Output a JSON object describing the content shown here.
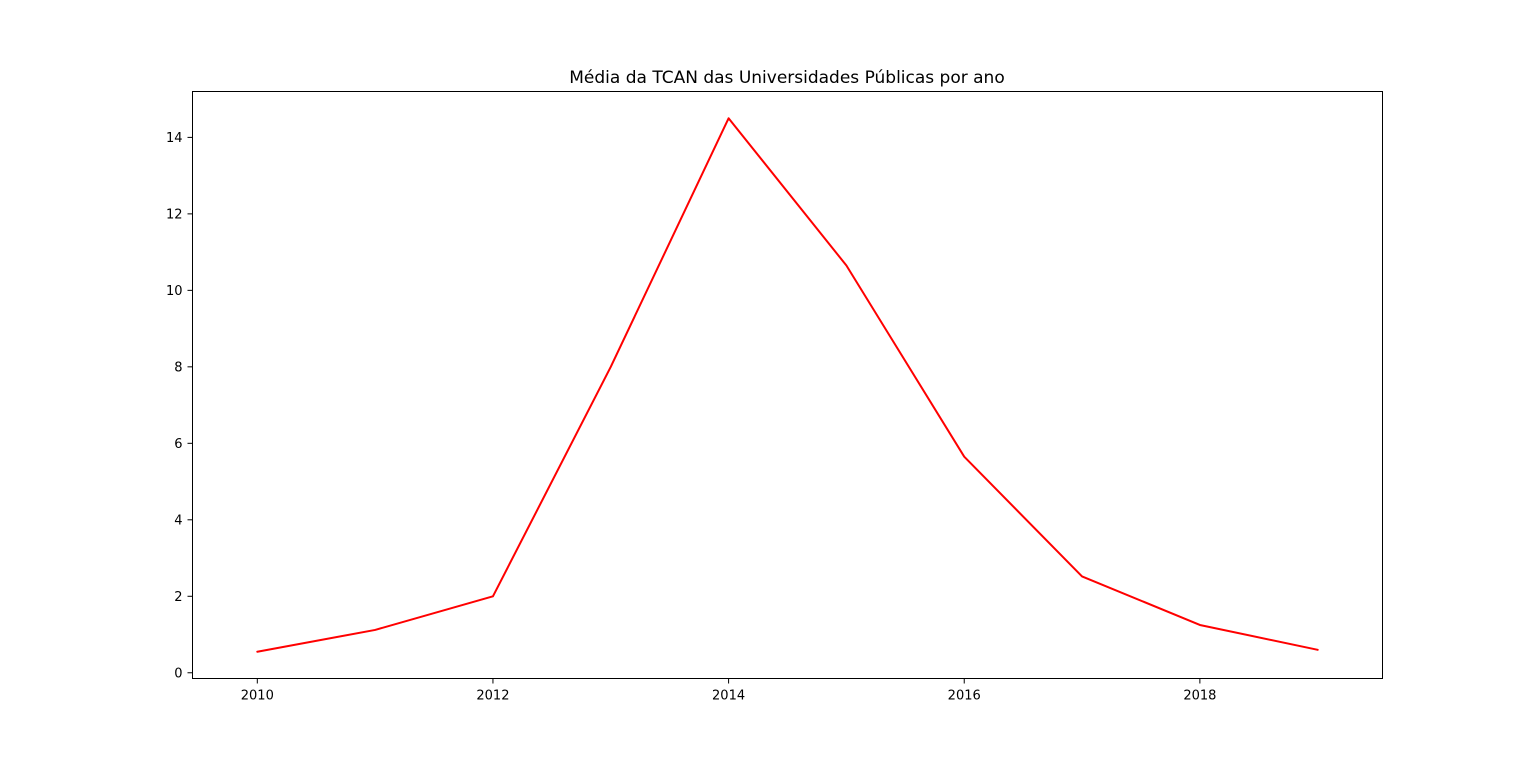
{
  "chart_data": {
    "type": "line",
    "title": "Média da TCAN das Universidades Públicas por ano",
    "xlabel": "",
    "ylabel": "",
    "x": [
      2010,
      2011,
      2012,
      2013,
      2014,
      2015,
      2016,
      2017,
      2018,
      2019
    ],
    "series": [
      {
        "color": "#ff0000",
        "values": [
          0.55,
          1.12,
          2.0,
          8.0,
          14.5,
          10.65,
          5.65,
          2.52,
          1.25,
          0.6
        ]
      }
    ],
    "xlim": [
      2009.45,
      2019.55
    ],
    "ylim": [
      -0.15,
      15.2
    ],
    "x_ticks": [
      2010,
      2012,
      2014,
      2016,
      2018
    ],
    "y_ticks": [
      0,
      2,
      4,
      6,
      8,
      10,
      12,
      14
    ],
    "grid": false,
    "legend": "none"
  }
}
